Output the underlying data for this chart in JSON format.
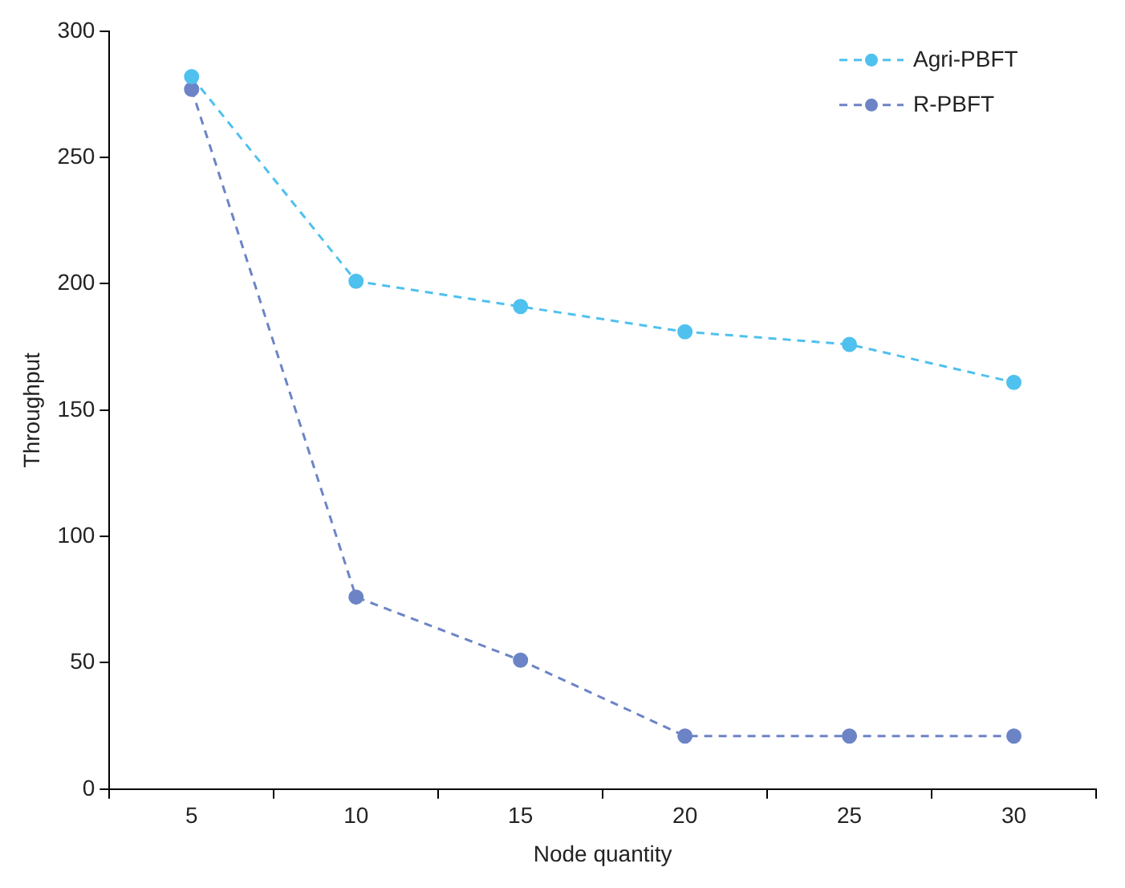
{
  "chart_data": {
    "type": "line",
    "xlabel": "Node quantity",
    "ylabel": "Throughput",
    "categories": [
      "5",
      "10",
      "15",
      "20",
      "25",
      "30"
    ],
    "series": [
      {
        "name": "Agri-PBFT",
        "color": "#4fc1ee",
        "values": [
          282,
          201,
          191,
          181,
          176,
          161
        ]
      },
      {
        "name": "R-PBFT",
        "color": "#6c84c6",
        "values": [
          277,
          76,
          51,
          21,
          21,
          21
        ]
      }
    ],
    "ylim": [
      0,
      300
    ],
    "yticks": [
      0,
      50,
      100,
      150,
      200,
      250,
      300
    ],
    "grid": false,
    "legend": "top right",
    "marker": "circle",
    "line_style": "dashed"
  }
}
